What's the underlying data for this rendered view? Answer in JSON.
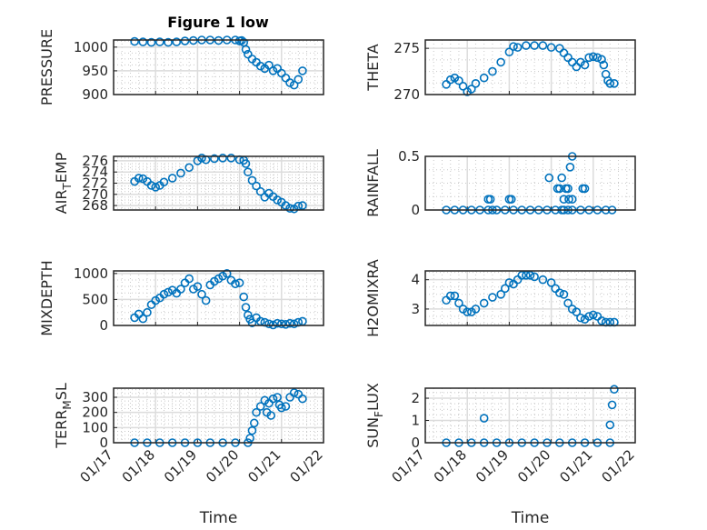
{
  "figure": {
    "title": "Figure 1 low",
    "marker_color": "#0072BD"
  },
  "chart_data": [
    {
      "type": "scatter",
      "panel": "top-left",
      "title": "Figure 1 low",
      "xlabel": "",
      "ylabel": "PRESSURE",
      "ylim": [
        900,
        1015
      ],
      "yticks": [
        900,
        950,
        1000
      ],
      "ytick_labels": [
        "900",
        "950",
        "1000"
      ],
      "x_is_days_since_01_17": true,
      "xlim": [
        0,
        5
      ],
      "x": [
        0.5,
        0.7,
        0.9,
        1.1,
        1.3,
        1.5,
        1.7,
        1.9,
        2.1,
        2.3,
        2.5,
        2.7,
        2.9,
        3.0,
        3.05,
        3.1,
        3.15,
        3.2,
        3.3,
        3.4,
        3.5,
        3.6,
        3.7,
        3.8,
        3.9,
        4.0,
        4.1,
        4.2,
        4.3,
        4.4,
        4.5
      ],
      "y": [
        1012,
        1011,
        1010,
        1011,
        1010,
        1011,
        1013,
        1014,
        1015,
        1015,
        1014,
        1015,
        1015,
        1013,
        1014,
        1010,
        995,
        985,
        975,
        968,
        960,
        955,
        962,
        950,
        955,
        945,
        935,
        925,
        920,
        932,
        950
      ]
    },
    {
      "type": "scatter",
      "panel": "top-right",
      "xlabel": "",
      "ylabel": "THETA",
      "ylim": [
        270,
        275.9
      ],
      "yticks": [
        270,
        275
      ],
      "ytick_labels": [
        "270",
        "275"
      ],
      "xlim": [
        0,
        5
      ],
      "x": [
        0.5,
        0.6,
        0.7,
        0.8,
        0.9,
        1.0,
        1.1,
        1.2,
        1.4,
        1.6,
        1.8,
        2.0,
        2.1,
        2.2,
        2.4,
        2.6,
        2.8,
        3.0,
        3.2,
        3.3,
        3.4,
        3.5,
        3.6,
        3.7,
        3.8,
        3.9,
        4.0,
        4.1,
        4.2,
        4.25,
        4.3,
        4.35,
        4.4,
        4.5
      ],
      "y": [
        271.1,
        271.6,
        271.8,
        271.5,
        270.9,
        270.3,
        270.6,
        271.2,
        271.8,
        272.5,
        273.5,
        274.6,
        275.2,
        275.1,
        275.3,
        275.3,
        275.3,
        275.1,
        275.0,
        274.5,
        274.0,
        273.5,
        273.0,
        273.5,
        273.2,
        274.0,
        274.1,
        274.0,
        273.8,
        273.2,
        272.2,
        271.5,
        271.2,
        271.2
      ]
    },
    {
      "type": "scatter",
      "panel": "row2-left",
      "xlabel": "",
      "ylabel": "AIR_TEMP",
      "ylim": [
        267.2,
        276.8
      ],
      "yticks": [
        268,
        270,
        272,
        274,
        276
      ],
      "ytick_labels": [
        "268",
        "270",
        "272",
        "274",
        "276"
      ],
      "xlim": [
        0,
        5
      ],
      "x": [
        0.5,
        0.6,
        0.7,
        0.8,
        0.9,
        1.0,
        1.1,
        1.2,
        1.4,
        1.6,
        1.8,
        2.0,
        2.1,
        2.2,
        2.4,
        2.6,
        2.8,
        3.0,
        3.1,
        3.15,
        3.2,
        3.3,
        3.4,
        3.5,
        3.6,
        3.7,
        3.8,
        3.9,
        4.0,
        4.1,
        4.2,
        4.3,
        4.4,
        4.5
      ],
      "y": [
        272.3,
        272.9,
        272.8,
        272.3,
        271.6,
        271.3,
        271.6,
        272.2,
        272.9,
        273.8,
        274.8,
        276.0,
        276.5,
        276.2,
        276.4,
        276.5,
        276.5,
        276.2,
        276.1,
        275.5,
        274.0,
        272.5,
        271.5,
        270.5,
        269.5,
        270.2,
        269.6,
        269.0,
        268.6,
        268.0,
        267.5,
        267.4,
        267.9,
        268.0
      ]
    },
    {
      "type": "scatter",
      "panel": "row2-right",
      "xlabel": "",
      "ylabel": "RAINFALL",
      "ylim": [
        0,
        0.5
      ],
      "yticks": [
        0,
        0.5
      ],
      "ytick_labels": [
        "0",
        "0.5"
      ],
      "xlim": [
        0,
        5
      ],
      "x": [
        0.5,
        0.7,
        0.9,
        1.1,
        1.3,
        1.5,
        1.6,
        1.7,
        1.9,
        2.1,
        2.3,
        2.5,
        2.7,
        2.9,
        3.1,
        3.3,
        3.5,
        3.7,
        3.9,
        4.1,
        4.3,
        4.45,
        1.5,
        1.55,
        2.0,
        2.05,
        2.95,
        3.25,
        3.45,
        3.5,
        3.15,
        3.2,
        3.35,
        3.4,
        3.42,
        3.3,
        3.5,
        3.8,
        3.75,
        3.25,
        3.4
      ],
      "y": [
        0,
        0,
        0,
        0,
        0,
        0,
        0,
        0,
        0,
        0,
        0,
        0,
        0,
        0,
        0,
        0,
        0,
        0,
        0,
        0,
        0,
        0,
        0.1,
        0.1,
        0.1,
        0.1,
        0.3,
        0.3,
        0.4,
        0.5,
        0.2,
        0.2,
        0.2,
        0.2,
        0.1,
        0.1,
        0.1,
        0.2,
        0.2,
        0,
        0
      ]
    },
    {
      "type": "scatter",
      "panel": "row3-left",
      "xlabel": "",
      "ylabel": "MIXDEPTH",
      "ylim": [
        0,
        1050
      ],
      "yticks": [
        0,
        500,
        1000
      ],
      "ytick_labels": [
        "0",
        "500",
        "1000"
      ],
      "xlim": [
        0,
        5
      ],
      "x": [
        0.5,
        0.6,
        0.7,
        0.8,
        0.9,
        1.0,
        1.1,
        1.2,
        1.3,
        1.4,
        1.5,
        1.6,
        1.7,
        1.8,
        1.9,
        2.0,
        2.1,
        2.2,
        2.3,
        2.4,
        2.5,
        2.6,
        2.7,
        2.8,
        2.9,
        3.0,
        3.1,
        3.15,
        3.2,
        3.25,
        3.3,
        3.4,
        3.5,
        3.6,
        3.7,
        3.8,
        3.9,
        4.0,
        4.1,
        4.2,
        4.3,
        4.4,
        4.5
      ],
      "y": [
        150,
        220,
        130,
        250,
        400,
        480,
        530,
        600,
        640,
        680,
        620,
        700,
        820,
        900,
        700,
        750,
        600,
        480,
        780,
        850,
        900,
        950,
        1000,
        870,
        800,
        820,
        550,
        350,
        200,
        120,
        50,
        150,
        80,
        60,
        30,
        10,
        40,
        30,
        20,
        40,
        30,
        60,
        80
      ]
    },
    {
      "type": "scatter",
      "panel": "row3-right",
      "xlabel": "",
      "ylabel": "H2OMIXRA",
      "ylim": [
        2.44,
        4.3
      ],
      "yticks": [
        3,
        4
      ],
      "ytick_labels": [
        "3",
        "4"
      ],
      "xlim": [
        0,
        5
      ],
      "x": [
        0.5,
        0.6,
        0.7,
        0.8,
        0.9,
        1.0,
        1.1,
        1.2,
        1.4,
        1.6,
        1.8,
        1.9,
        2.0,
        2.1,
        2.2,
        2.3,
        2.4,
        2.5,
        2.6,
        2.8,
        3.0,
        3.1,
        3.2,
        3.3,
        3.4,
        3.5,
        3.6,
        3.7,
        3.8,
        3.9,
        4.0,
        4.1,
        4.2,
        4.3,
        4.4,
        4.5
      ],
      "y": [
        3.3,
        3.45,
        3.45,
        3.2,
        3.0,
        2.9,
        2.9,
        3.0,
        3.2,
        3.4,
        3.5,
        3.7,
        3.9,
        3.85,
        4.0,
        4.15,
        4.15,
        4.15,
        4.1,
        4.0,
        3.9,
        3.7,
        3.55,
        3.5,
        3.2,
        3.0,
        2.9,
        2.7,
        2.65,
        2.75,
        2.8,
        2.75,
        2.6,
        2.55,
        2.55,
        2.55
      ]
    },
    {
      "type": "scatter",
      "panel": "bottom-left",
      "xlabel": "Time",
      "ylabel": "TERR_MSL",
      "ylim": [
        0,
        360
      ],
      "yticks": [
        0,
        100,
        200,
        300
      ],
      "ytick_labels": [
        "0",
        "100",
        "200",
        "300"
      ],
      "xlim": [
        0,
        5
      ],
      "xtick_labels": [
        "01/17",
        "01/18",
        "01/19",
        "01/20",
        "01/21",
        "01/22"
      ],
      "x": [
        0.5,
        0.8,
        1.1,
        1.4,
        1.7,
        2.0,
        2.3,
        2.6,
        2.9,
        3.2,
        3.25,
        3.3,
        3.35,
        3.4,
        3.5,
        3.6,
        3.65,
        3.7,
        3.75,
        3.8,
        3.9,
        3.95,
        4.0,
        4.1,
        4.2,
        4.3,
        4.4,
        4.5
      ],
      "y": [
        0,
        0,
        0,
        0,
        0,
        0,
        0,
        0,
        0,
        0,
        30,
        80,
        130,
        200,
        240,
        280,
        200,
        260,
        180,
        290,
        300,
        250,
        230,
        240,
        300,
        330,
        320,
        290
      ]
    },
    {
      "type": "scatter",
      "panel": "bottom-right",
      "xlabel": "Time",
      "ylabel": "SUN_FLUX",
      "ylim": [
        0,
        2.45
      ],
      "yticks": [
        0,
        1,
        2
      ],
      "ytick_labels": [
        "0",
        "1",
        "2"
      ],
      "xlim": [
        0,
        5
      ],
      "xtick_labels": [
        "01/17",
        "01/18",
        "01/19",
        "01/20",
        "01/21",
        "01/22"
      ],
      "x": [
        0.5,
        0.8,
        1.1,
        1.4,
        1.7,
        2.0,
        2.3,
        2.6,
        2.9,
        3.2,
        3.5,
        3.8,
        4.1,
        4.4,
        1.4,
        4.4,
        4.45,
        4.5
      ],
      "y": [
        0,
        0,
        0,
        0,
        0,
        0,
        0,
        0,
        0,
        0,
        0,
        0,
        0,
        0,
        1.1,
        0.8,
        1.7,
        2.4
      ]
    }
  ]
}
